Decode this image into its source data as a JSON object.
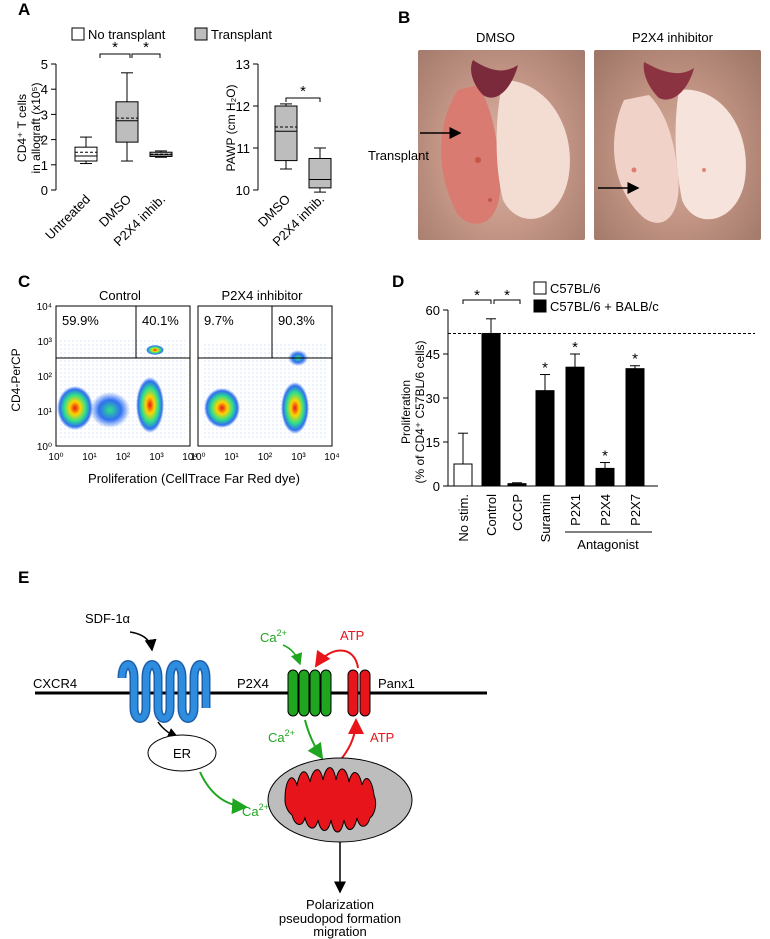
{
  "panels": {
    "A": "A",
    "B": "B",
    "C": "C",
    "D": "D",
    "E": "E"
  },
  "panelA": {
    "legend": {
      "none": "No transplant",
      "tx": "Transplant"
    },
    "left": {
      "ylabel1": "CD4⁺ T cells",
      "ylabel2": "in allograft (x10⁵)",
      "yticks": [
        "0",
        "1",
        "2",
        "3",
        "4",
        "5"
      ],
      "categories": [
        "Untreated",
        "DMSO",
        "P2X4 inhib."
      ],
      "sig": "*"
    },
    "right": {
      "ylabel": "PAWP (cm H₂O)",
      "yticks": [
        "10",
        "11",
        "12",
        "13"
      ],
      "categories": [
        "DMSO",
        "P2X4 inhib."
      ],
      "sig": "*"
    }
  },
  "panelB": {
    "dmso": "DMSO",
    "inhib": "P2X4 inhibitor",
    "transplant": "Transplant"
  },
  "panelC": {
    "control": "Control",
    "inhib": "P2X4 inhibitor",
    "ylabel": "CD4-PerCP",
    "xlabel": "Proliferation (CellTrace Far Red dye)",
    "q1": "59.9%",
    "q2": "40.1%",
    "q3": "9.7%",
    "q4": "90.3%",
    "yticks": [
      "10⁰",
      "10¹",
      "10²",
      "10³",
      "10⁴"
    ],
    "xticks": [
      "10⁰",
      "10¹",
      "10²",
      "10³",
      "10⁴"
    ]
  },
  "panelD": {
    "legend": {
      "a": "C57BL/6",
      "b": "C57BL/6 + BALB/c"
    },
    "ylabel1": "Proliferation",
    "ylabel2": "(% of CD4⁺ C57BL/6 cells)",
    "yticks": [
      "0",
      "15",
      "30",
      "45",
      "60"
    ],
    "antagonist": "Antagonist",
    "sig": "*"
  },
  "panelE": {
    "sdf": "SDF-1α",
    "cxcr4": "CXCR4",
    "p2x4": "P2X4",
    "panx1": "Panx1",
    "ca": "Ca",
    "ca_sup": "2+",
    "atp": "ATP",
    "er": "ER",
    "out1": "Polarization",
    "out2": "pseudopod formation",
    "out3": "migration"
  },
  "colors": {
    "green": "#1fa51f",
    "red": "#e8141b",
    "blue": "#2f8de0",
    "gray": "#bdbdbd"
  },
  "chart_data": [
    {
      "type": "box",
      "panel": "A-left",
      "ylim": [
        0,
        5
      ],
      "categories": [
        "Untreated",
        "DMSO",
        "P2X4 inhib."
      ],
      "boxes": [
        {
          "min": 1.05,
          "q1": 1.15,
          "median": 1.35,
          "mean": 1.5,
          "q3": 1.7,
          "max": 2.1,
          "group": "No transplant"
        },
        {
          "min": 1.15,
          "q1": 1.9,
          "median": 2.75,
          "mean": 2.85,
          "q3": 3.5,
          "max": 4.65,
          "group": "Transplant"
        },
        {
          "min": 1.3,
          "q1": 1.33,
          "median": 1.4,
          "mean": 1.42,
          "q3": 1.5,
          "max": 1.55,
          "group": "Transplant"
        }
      ]
    },
    {
      "type": "box",
      "panel": "A-right",
      "ylim": [
        10,
        13
      ],
      "categories": [
        "DMSO",
        "P2X4 inhib."
      ],
      "boxes": [
        {
          "min": 10.5,
          "q1": 10.7,
          "median": 11.4,
          "mean": 11.5,
          "q3": 12.0,
          "max": 12.05,
          "group": "Transplant"
        },
        {
          "min": 9.95,
          "q1": 10.05,
          "median": 10.25,
          "mean": 10.25,
          "q3": 10.75,
          "max": 11.0,
          "group": "Transplant"
        }
      ]
    },
    {
      "type": "bar",
      "panel": "D",
      "ylim": [
        0,
        60
      ],
      "categories": [
        "No stim.",
        "Control",
        "CCCP",
        "Suramin",
        "P2X1",
        "P2X4",
        "P2X7"
      ],
      "values": [
        7.5,
        52,
        0.8,
        32.5,
        40.5,
        6,
        40
      ],
      "errors": [
        10.5,
        5,
        0.3,
        5.5,
        4.5,
        2,
        1
      ],
      "groups": [
        "C57BL/6",
        "C57BL/6 + BALB/c",
        "C57BL/6 + BALB/c",
        "C57BL/6 + BALB/c",
        "C57BL/6 + BALB/c",
        "C57BL/6 + BALB/c",
        "C57BL/6 + BALB/c"
      ],
      "reference_line": 52
    }
  ]
}
